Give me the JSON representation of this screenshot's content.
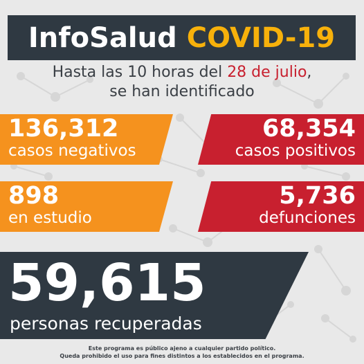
{
  "header": {
    "brand": "InfoSalud",
    "topic": "COVID-19"
  },
  "subtitle": {
    "line1_prefix": "Hasta las 10 horas del ",
    "line1_date": "28 de julio",
    "line1_suffix": ",",
    "line2": "se han identificado"
  },
  "stats": {
    "negativos": {
      "value": "136,312",
      "label": "casos negativos"
    },
    "positivos": {
      "value": "68,354",
      "label": "casos positivos"
    },
    "estudio": {
      "value": "898",
      "label": "en estudio"
    },
    "defunciones": {
      "value": "5,736",
      "label": "defunciones"
    }
  },
  "recovered": {
    "value": "59,615",
    "label": "personas recuperadas"
  },
  "footer": {
    "line1": "Este programa es público ajeno a cualquier partido político.",
    "line2": "Queda prohibido el uso para fines distintos a los establecidos en el programa."
  },
  "colors": {
    "dark": "#2f3942",
    "yellow": "#f7b10b",
    "orange": "#f5921e",
    "red": "#c8202f"
  }
}
